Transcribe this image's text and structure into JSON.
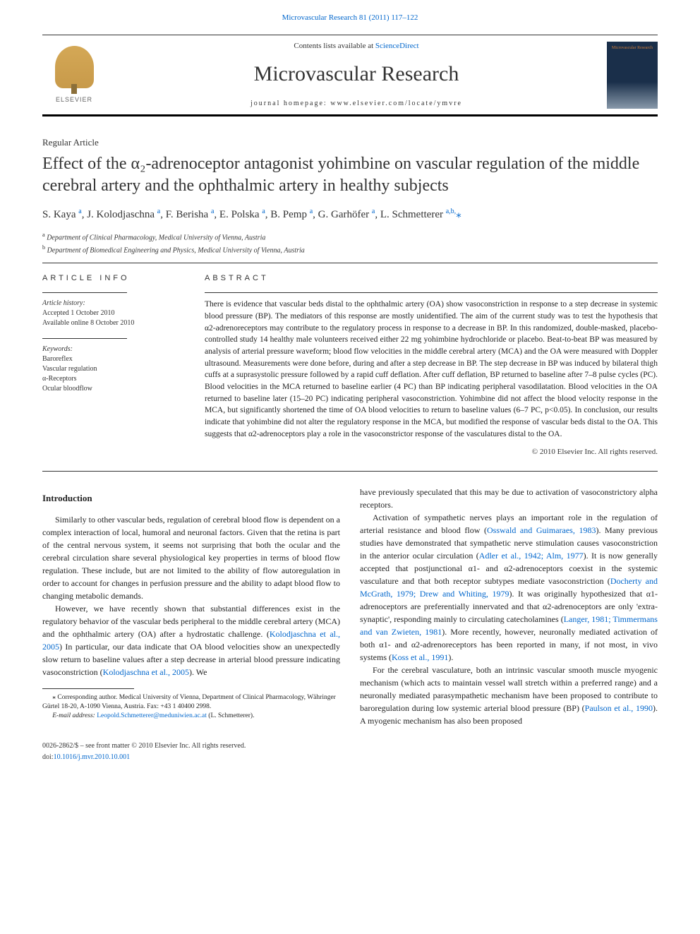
{
  "top_link": "Microvascular Research 81 (2011) 117–122",
  "header": {
    "contents_prefix": "Contents lists available at ",
    "contents_link": "ScienceDirect",
    "journal": "Microvascular Research",
    "homepage_label": "journal homepage: ",
    "homepage_url": "www.elsevier.com/locate/ymvre",
    "publisher": "ELSEVIER",
    "cover_label": "Microvascular Research"
  },
  "article_type": "Regular Article",
  "title": "Effect of the α₂-adrenoceptor antagonist yohimbine on vascular regulation of the middle cerebral artery and the ophthalmic artery in healthy subjects",
  "authors_html": "S. Kaya <sup>a</sup>, J. Kolodjaschna <sup>a</sup>, F. Berisha <sup>a</sup>, E. Polska <sup>a</sup>, B. Pemp <sup>a</sup>, G. Garhöfer <sup>a</sup>, L. Schmetterer <sup>a,b,</sup><span class='corr'>⁎</span>",
  "affiliations": {
    "a": "Department of Clinical Pharmacology, Medical University of Vienna, Austria",
    "b": "Department of Biomedical Engineering and Physics, Medical University of Vienna, Austria"
  },
  "info": {
    "heading": "ARTICLE INFO",
    "history_label": "Article history:",
    "accepted": "Accepted 1 October 2010",
    "online": "Available online 8 October 2010",
    "keywords_label": "Keywords:",
    "keywords": [
      "Baroreflex",
      "Vascular regulation",
      "α-Receptors",
      "Ocular bloodflow"
    ]
  },
  "abstract": {
    "heading": "ABSTRACT",
    "text": "There is evidence that vascular beds distal to the ophthalmic artery (OA) show vasoconstriction in response to a step decrease in systemic blood pressure (BP). The mediators of this response are mostly unidentified. The aim of the current study was to test the hypothesis that α2-adrenoreceptors may contribute to the regulatory process in response to a decrease in BP. In this randomized, double-masked, placebo-controlled study 14 healthy male volunteers received either 22 mg yohimbine hydrochloride or placebo. Beat-to-beat BP was measured by analysis of arterial pressure waveform; blood flow velocities in the middle cerebral artery (MCA) and the OA were measured with Doppler ultrasound. Measurements were done before, during and after a step decrease in BP. The step decrease in BP was induced by bilateral thigh cuffs at a suprasystolic pressure followed by a rapid cuff deflation. After cuff deflation, BP returned to baseline after 7–8 pulse cycles (PC). Blood velocities in the MCA returned to baseline earlier (4 PC) than BP indicating peripheral vasodilatation. Blood velocities in the OA returned to baseline later (15–20 PC) indicating peripheral vasoconstriction. Yohimbine did not affect the blood velocity response in the MCA, but significantly shortened the time of OA blood velocities to return to baseline values (6–7 PC, p<0.05). In conclusion, our results indicate that yohimbine did not alter the regulatory response in the MCA, but modified the response of vascular beds distal to the OA. This suggests that α2-adrenoceptors play a role in the vasoconstrictor response of the vasculatures distal to the OA.",
    "copyright": "© 2010 Elsevier Inc. All rights reserved."
  },
  "body": {
    "intro_heading": "Introduction",
    "p1": "Similarly to other vascular beds, regulation of cerebral blood flow is dependent on a complex interaction of local, humoral and neuronal factors. Given that the retina is part of the central nervous system, it seems not surprising that both the ocular and the cerebral circulation share several physiological key properties in terms of blood flow regulation. These include, but are not limited to the ability of flow autoregulation in order to account for changes in perfusion pressure and the ability to adapt blood flow to changing metabolic demands.",
    "p2_pre": "However, we have recently shown that substantial differences exist in the regulatory behavior of the vascular beds peripheral to the middle cerebral artery (MCA) and the ophthalmic artery (OA) after a hydrostatic challenge. (",
    "p2_c1": "Kolodjaschna et al., 2005",
    "p2_mid": ") In particular, our data indicate that OA blood velocities show an unexpectedly slow return to baseline values after a step decrease in arterial blood pressure indicating vasoconstriction (",
    "p2_c2": "Kolodjaschna et al., 2005",
    "p2_end": "). We",
    "p2b": "have previously speculated that this may be due to activation of vasoconstrictory alpha receptors.",
    "p3_pre": "Activation of sympathetic nerves plays an important role in the regulation of arterial resistance and blood flow (",
    "p3_c1": "Osswald and Guimaraes, 1983",
    "p3_m1": "). Many previous studies have demonstrated that sympathetic nerve stimulation causes vasoconstriction in the anterior ocular circulation (",
    "p3_c2": "Adler et al., 1942; Alm, 1977",
    "p3_m2": "). It is now generally accepted that postjunctional α1- and α2-adrenoceptors coexist in the systemic vasculature and that both receptor subtypes mediate vasoconstriction (",
    "p3_c3": "Docherty and McGrath, 1979; Drew and Whiting, 1979",
    "p3_m3": "). It was originally hypothesized that α1-adrenoceptors are preferentially innervated and that α2-adrenoceptors are only 'extra-synaptic', responding mainly to circulating catecholamines (",
    "p3_c4": "Langer, 1981; Timmermans and van Zwieten, 1981",
    "p3_m4": "). More recently, however, neuronally mediated activation of both α1- and α2-adrenoreceptors has been reported in many, if not most, in vivo systems (",
    "p3_c5": "Koss et al., 1991",
    "p3_end": ").",
    "p4_pre": "For the cerebral vasculature, both an intrinsic vascular smooth muscle myogenic mechanism (which acts to maintain vessel wall stretch within a preferred range) and a neuronally mediated parasympathetic mechanism have been proposed to contribute to baroregulation during low systemic arterial blood pressure (BP) (",
    "p4_c1": "Paulson et al., 1990",
    "p4_end": "). A myogenic mechanism has also been proposed"
  },
  "footnote": {
    "corr_label": "⁎ Corresponding author. Medical University of Vienna, Department of Clinical Pharmacology, Währinger Gürtel 18-20, A-1090 Vienna, Austria. Fax: +43 1 40400 2998.",
    "email_label": "E-mail address: ",
    "email": "Leopold.Schmetterer@meduniwien.ac.at",
    "email_suffix": " (L. Schmetterer)."
  },
  "footer": {
    "issn": "0026-2862/$ – see front matter © 2010 Elsevier Inc. All rights reserved.",
    "doi": "doi:10.1016/j.mvr.2010.10.001"
  }
}
